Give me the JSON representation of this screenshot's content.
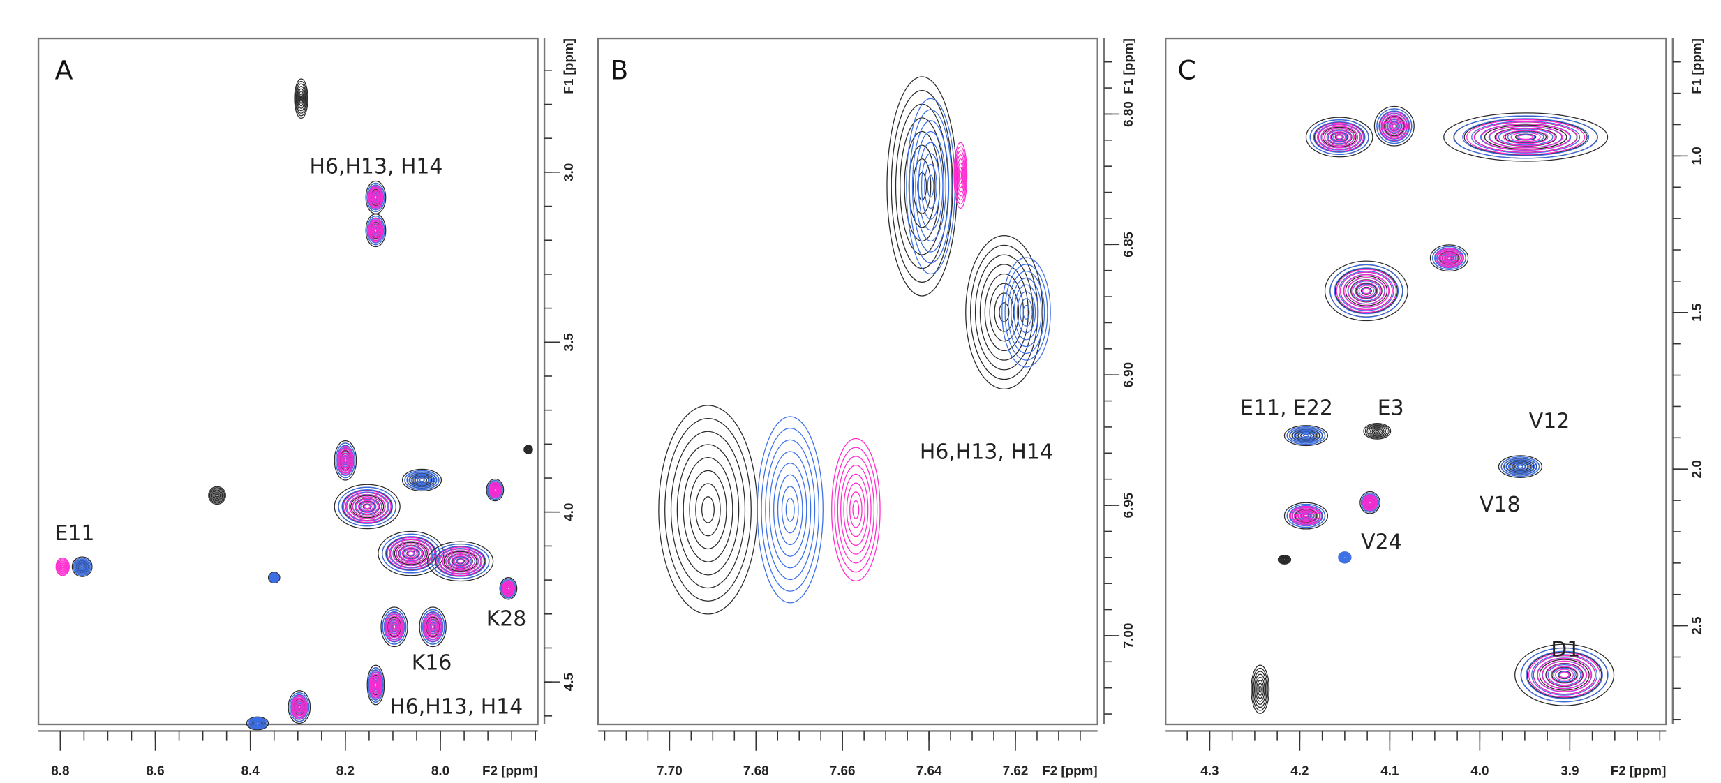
{
  "colors": {
    "k": "#2a2a2a",
    "b": "#3c6fe6",
    "m": "#ff2ad0",
    "axis": "#777777"
  },
  "chart_data": [
    {
      "type": "scatter",
      "title": "A",
      "xlabel": "F2 [ppm]",
      "ylabel": "F1 [ppm]",
      "xlim": [
        8.846,
        7.795
      ],
      "ylim": [
        2.606,
        4.625
      ],
      "xticks": [
        8.8,
        8.6,
        8.4,
        8.2,
        8.0
      ],
      "xtick_labels": [
        "8.8",
        "8.6",
        "8.4",
        "8.2",
        "8.0"
      ],
      "xminor": 0.05,
      "yticks": [
        3.0,
        3.5,
        4.0,
        4.5
      ],
      "ytick_labels": [
        "3.0",
        "3.5",
        "4.0",
        "4.5"
      ],
      "yminor": 0.1,
      "annotations": [
        "H6,H13, H14",
        "E11",
        "K28",
        "K16",
        "H6,H13, H14"
      ],
      "peaks": [
        {
          "x": 8.293,
          "y": 2.783,
          "wx": 0.014,
          "wy": 0.058,
          "layers": "k"
        },
        {
          "x": 8.136,
          "y": 3.074,
          "wx": 0.021,
          "wy": 0.048,
          "layers": "kbm"
        },
        {
          "x": 8.136,
          "y": 3.171,
          "wx": 0.021,
          "wy": 0.048,
          "layers": "kbm"
        },
        {
          "x": 8.2,
          "y": 3.848,
          "wx": 0.023,
          "wy": 0.058,
          "layers": "kbm"
        },
        {
          "x": 8.47,
          "y": 3.951,
          "wx": 0.018,
          "wy": 0.026,
          "layers": "k"
        },
        {
          "x": 8.154,
          "y": 3.984,
          "wx": 0.069,
          "wy": 0.065,
          "layers": "kbm"
        },
        {
          "x": 8.039,
          "y": 3.906,
          "wx": 0.041,
          "wy": 0.032,
          "layers": "kb"
        },
        {
          "x": 7.885,
          "y": 3.935,
          "wx": 0.018,
          "wy": 0.032,
          "layers": "kbm"
        },
        {
          "x": 8.062,
          "y": 4.122,
          "wx": 0.069,
          "wy": 0.065,
          "layers": "kbm"
        },
        {
          "x": 7.958,
          "y": 4.145,
          "wx": 0.069,
          "wy": 0.058,
          "layers": "kbm"
        },
        {
          "x": 8.754,
          "y": 4.161,
          "wx": 0.021,
          "wy": 0.029,
          "layers": "kb"
        },
        {
          "x": 8.795,
          "y": 4.161,
          "wx": 0.014,
          "wy": 0.026,
          "layers": "m"
        },
        {
          "x": 8.35,
          "y": 4.193,
          "wx": 0.012,
          "wy": 0.016,
          "layers": "kb"
        },
        {
          "x": 7.857,
          "y": 4.225,
          "wx": 0.018,
          "wy": 0.032,
          "layers": "kbm"
        },
        {
          "x": 8.097,
          "y": 4.338,
          "wx": 0.028,
          "wy": 0.058,
          "layers": "kbm"
        },
        {
          "x": 8.016,
          "y": 4.338,
          "wx": 0.028,
          "wy": 0.058,
          "layers": "kbm"
        },
        {
          "x": 8.136,
          "y": 4.509,
          "wx": 0.018,
          "wy": 0.058,
          "layers": "kbm"
        },
        {
          "x": 8.297,
          "y": 4.574,
          "wx": 0.023,
          "wy": 0.048,
          "layers": "kbm"
        },
        {
          "x": 8.385,
          "y": 4.622,
          "wx": 0.023,
          "wy": 0.019,
          "layers": "kb"
        },
        {
          "x": 7.815,
          "y": 3.816,
          "wx": 0.009,
          "wy": 0.013,
          "layers": "k"
        }
      ]
    },
    {
      "type": "scatter",
      "title": "B",
      "xlabel": "F2 [ppm]",
      "ylabel": "F1 [ppm]",
      "xlim": [
        7.7165,
        7.601
      ],
      "ylim": [
        6.771,
        7.034
      ],
      "xticks": [
        7.7,
        7.68,
        7.66,
        7.64,
        7.62
      ],
      "xtick_labels": [
        "7.70",
        "7.68",
        "7.66",
        "7.64",
        "7.62"
      ],
      "xminor": 0.005,
      "yticks": [
        6.8,
        6.85,
        6.9,
        6.95,
        7.0
      ],
      "ytick_labels": [
        "6.80",
        "6.85",
        "6.90",
        "6.95",
        "7.00"
      ],
      "yminor": 0.01,
      "annotations": [
        "H6,H13, H14"
      ],
      "peaks": [
        {
          "x": 7.6911,
          "y": 6.9517,
          "wx": 0.0114,
          "wy": 0.04,
          "layers": "k"
        },
        {
          "x": 7.6721,
          "y": 6.9517,
          "wx": 0.0076,
          "wy": 0.0357,
          "layers": "b"
        },
        {
          "x": 7.6569,
          "y": 6.9517,
          "wx": 0.0056,
          "wy": 0.0273,
          "layers": "m"
        },
        {
          "x": 7.6416,
          "y": 6.8277,
          "wx": 0.0081,
          "wy": 0.042,
          "layers": "k"
        },
        {
          "x": 7.6396,
          "y": 6.8277,
          "wx": 0.0056,
          "wy": 0.0336,
          "layers": "b"
        },
        {
          "x": 7.6327,
          "y": 6.8235,
          "wx": 0.0015,
          "wy": 0.0126,
          "layers": "m"
        },
        {
          "x": 7.6226,
          "y": 6.876,
          "wx": 0.0089,
          "wy": 0.0294,
          "layers": "k"
        },
        {
          "x": 7.6175,
          "y": 6.876,
          "wx": 0.0056,
          "wy": 0.021,
          "layers": "b"
        }
      ]
    },
    {
      "type": "scatter",
      "title": "C",
      "xlabel": "F2 [ppm]",
      "ylabel": "F1 [ppm]",
      "xlim": [
        4.349,
        3.793
      ],
      "ylim": [
        0.625,
        2.815
      ],
      "xticks": [
        4.3,
        4.2,
        4.1,
        4.0,
        3.9
      ],
      "xtick_labels": [
        "4.3",
        "4.2",
        "4.1",
        "4.0",
        "3.9"
      ],
      "xminor": 0.025,
      "yticks": [
        1.0,
        1.5,
        2.0,
        2.5
      ],
      "ytick_labels": [
        "1.0",
        "1.5",
        "2.0",
        "2.5"
      ],
      "yminor": 0.1,
      "annotations": [
        "E11, E22",
        "E3",
        "V12",
        "V18",
        "V24",
        "D1"
      ],
      "peaks": [
        {
          "x": 4.156,
          "y": 0.94,
          "wx": 0.037,
          "wy": 0.063,
          "layers": "kbm"
        },
        {
          "x": 4.095,
          "y": 0.905,
          "wx": 0.022,
          "wy": 0.063,
          "layers": "kbm"
        },
        {
          "x": 3.949,
          "y": 0.94,
          "wx": 0.091,
          "wy": 0.077,
          "layers": "kbm"
        },
        {
          "x": 4.126,
          "y": 1.431,
          "wx": 0.046,
          "wy": 0.095,
          "layers": "kbm"
        },
        {
          "x": 4.034,
          "y": 1.326,
          "wx": 0.021,
          "wy": 0.042,
          "layers": "kbm"
        },
        {
          "x": 4.193,
          "y": 1.893,
          "wx": 0.024,
          "wy": 0.032,
          "layers": "kb"
        },
        {
          "x": 4.114,
          "y": 1.879,
          "wx": 0.015,
          "wy": 0.025,
          "layers": "k"
        },
        {
          "x": 3.955,
          "y": 1.992,
          "wx": 0.024,
          "wy": 0.035,
          "layers": "kb"
        },
        {
          "x": 4.193,
          "y": 2.149,
          "wx": 0.024,
          "wy": 0.042,
          "layers": "kbm"
        },
        {
          "x": 4.122,
          "y": 2.107,
          "wx": 0.011,
          "wy": 0.035,
          "layers": "kbm"
        },
        {
          "x": 4.217,
          "y": 2.289,
          "wx": 0.007,
          "wy": 0.014,
          "layers": "k"
        },
        {
          "x": 4.15,
          "y": 2.282,
          "wx": 0.007,
          "wy": 0.018,
          "layers": "b"
        },
        {
          "x": 4.244,
          "y": 2.703,
          "wx": 0.01,
          "wy": 0.077,
          "layers": "k"
        },
        {
          "x": 3.906,
          "y": 2.657,
          "wx": 0.055,
          "wy": 0.098,
          "layers": "kbm"
        }
      ]
    }
  ]
}
